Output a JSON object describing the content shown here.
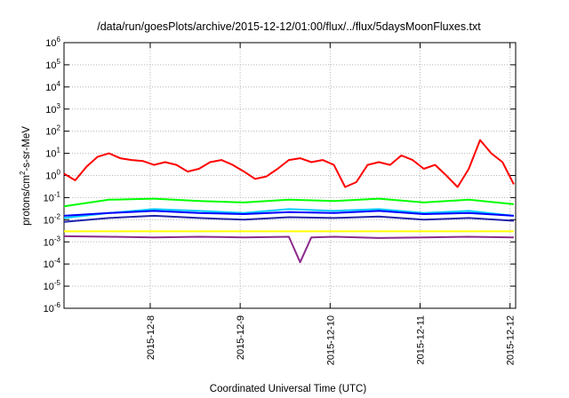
{
  "chart_data": {
    "type": "line",
    "title": "/data/run/goesPlots/archive/2015-12-12/01:00/flux/../flux/5daysMoonFluxes.txt",
    "xlabel": "Coordinated Universal Time (UTC)",
    "ylabel": "protons/cm2-s-sr-MeV",
    "ylabel_parts": {
      "base": "protons/cm",
      "sup": "2",
      "tail": "-s-sr-MeV"
    },
    "yscale": "log",
    "ylim": [
      1e-06,
      1000000.0
    ],
    "xlim": [
      "2015-12-07T01:00",
      "2015-12-12T01:30"
    ],
    "grid": true,
    "x_ticks": [
      "2015-12-8",
      "2015-12-9",
      "2015-12-10",
      "2015-12-11",
      "2015-12-12"
    ],
    "y_ticks": [
      {
        "base": "10",
        "exp": "-6"
      },
      {
        "base": "10",
        "exp": "-5"
      },
      {
        "base": "10",
        "exp": "-4"
      },
      {
        "base": "10",
        "exp": "-3"
      },
      {
        "base": "10",
        "exp": "-2"
      },
      {
        "base": "10",
        "exp": "-1"
      },
      {
        "base": "10",
        "exp": "0"
      },
      {
        "base": "10",
        "exp": "1"
      },
      {
        "base": "10",
        "exp": "2"
      },
      {
        "base": "10",
        "exp": "3"
      },
      {
        "base": "10",
        "exp": "4"
      },
      {
        "base": "10",
        "exp": "5"
      },
      {
        "base": "10",
        "exp": "6"
      }
    ],
    "series": [
      {
        "color": "#ff0000",
        "x": [
          "2015-12-07T01:00",
          "2015-12-07T04:00",
          "2015-12-07T07:00",
          "2015-12-07T10:00",
          "2015-12-07T13:00",
          "2015-12-07T16:00",
          "2015-12-07T19:00",
          "2015-12-07T22:00",
          "2015-12-08T01:00",
          "2015-12-08T04:00",
          "2015-12-08T07:00",
          "2015-12-08T10:00",
          "2015-12-08T13:00",
          "2015-12-08T16:00",
          "2015-12-08T19:00",
          "2015-12-08T22:00",
          "2015-12-09T01:00",
          "2015-12-09T04:00",
          "2015-12-09T07:00",
          "2015-12-09T10:00",
          "2015-12-09T13:00",
          "2015-12-09T16:00",
          "2015-12-09T19:00",
          "2015-12-09T22:00",
          "2015-12-10T01:00",
          "2015-12-10T04:00",
          "2015-12-10T07:00",
          "2015-12-10T10:00",
          "2015-12-10T13:00",
          "2015-12-10T16:00",
          "2015-12-10T19:00",
          "2015-12-10T22:00",
          "2015-12-11T01:00",
          "2015-12-11T04:00",
          "2015-12-11T07:00",
          "2015-12-11T10:00",
          "2015-12-11T13:00",
          "2015-12-11T16:00",
          "2015-12-11T19:00",
          "2015-12-11T22:00",
          "2015-12-12T01:00"
        ],
        "values": [
          1.2,
          0.6,
          2.5,
          7,
          10,
          6,
          5,
          4.5,
          3,
          4,
          3,
          1.5,
          2,
          4,
          5,
          3,
          1.5,
          0.7,
          0.9,
          2,
          5,
          6,
          4,
          5,
          3,
          0.3,
          0.5,
          3,
          4,
          3,
          8,
          5,
          2,
          3,
          1,
          0.3,
          2,
          40,
          10,
          4,
          0.4
        ]
      },
      {
        "color": "#00ff00",
        "x": [
          "2015-12-07T01:00",
          "2015-12-07T13:00",
          "2015-12-08T01:00",
          "2015-12-08T13:00",
          "2015-12-09T01:00",
          "2015-12-09T13:00",
          "2015-12-10T01:00",
          "2015-12-10T13:00",
          "2015-12-11T01:00",
          "2015-12-11T13:00",
          "2015-12-12T01:00"
        ],
        "values": [
          0.04,
          0.08,
          0.09,
          0.07,
          0.06,
          0.08,
          0.07,
          0.09,
          0.06,
          0.08,
          0.05
        ]
      },
      {
        "color": "#00ccff",
        "x": [
          "2015-12-07T01:00",
          "2015-12-07T13:00",
          "2015-12-08T01:00",
          "2015-12-08T13:00",
          "2015-12-09T01:00",
          "2015-12-09T13:00",
          "2015-12-10T01:00",
          "2015-12-10T13:00",
          "2015-12-11T01:00",
          "2015-12-11T13:00",
          "2015-12-12T01:00"
        ],
        "values": [
          0.012,
          0.02,
          0.03,
          0.025,
          0.02,
          0.03,
          0.025,
          0.03,
          0.02,
          0.025,
          0.015
        ]
      },
      {
        "color": "#0000ff",
        "x": [
          "2015-12-07T01:00",
          "2015-12-07T13:00",
          "2015-12-08T01:00",
          "2015-12-08T13:00",
          "2015-12-09T01:00",
          "2015-12-09T13:00",
          "2015-12-10T01:00",
          "2015-12-10T13:00",
          "2015-12-11T01:00",
          "2015-12-11T13:00",
          "2015-12-12T01:00"
        ],
        "values": [
          0.015,
          0.02,
          0.025,
          0.02,
          0.018,
          0.022,
          0.02,
          0.025,
          0.018,
          0.02,
          0.015
        ]
      },
      {
        "color": "#2222aa",
        "x": [
          "2015-12-07T01:00",
          "2015-12-07T13:00",
          "2015-12-08T01:00",
          "2015-12-08T13:00",
          "2015-12-09T01:00",
          "2015-12-09T13:00",
          "2015-12-10T01:00",
          "2015-12-10T13:00",
          "2015-12-11T01:00",
          "2015-12-11T13:00",
          "2015-12-12T01:00"
        ],
        "values": [
          0.008,
          0.012,
          0.015,
          0.012,
          0.01,
          0.013,
          0.012,
          0.014,
          0.01,
          0.012,
          0.009
        ]
      },
      {
        "color": "#ffff00",
        "x": [
          "2015-12-07T01:00",
          "2015-12-08T01:00",
          "2015-12-09T01:00",
          "2015-12-10T01:00",
          "2015-12-11T01:00",
          "2015-12-12T01:00"
        ],
        "values": [
          0.003,
          0.003,
          0.003,
          0.003,
          0.003,
          0.003
        ]
      },
      {
        "color": "#8b2a8b",
        "x": [
          "2015-12-07T01:00",
          "2015-12-07T13:00",
          "2015-12-08T01:00",
          "2015-12-08T13:00",
          "2015-12-09T01:00",
          "2015-12-09T13:00",
          "2015-12-09T16:00",
          "2015-12-09T19:00",
          "2015-12-10T01:00",
          "2015-12-10T13:00",
          "2015-12-11T01:00",
          "2015-12-11T13:00",
          "2015-12-12T01:00"
        ],
        "values": [
          0.0018,
          0.0017,
          0.0016,
          0.0017,
          0.0016,
          0.0017,
          0.00012,
          0.0016,
          0.0017,
          0.0015,
          0.0016,
          0.0017,
          0.0016
        ]
      }
    ]
  }
}
